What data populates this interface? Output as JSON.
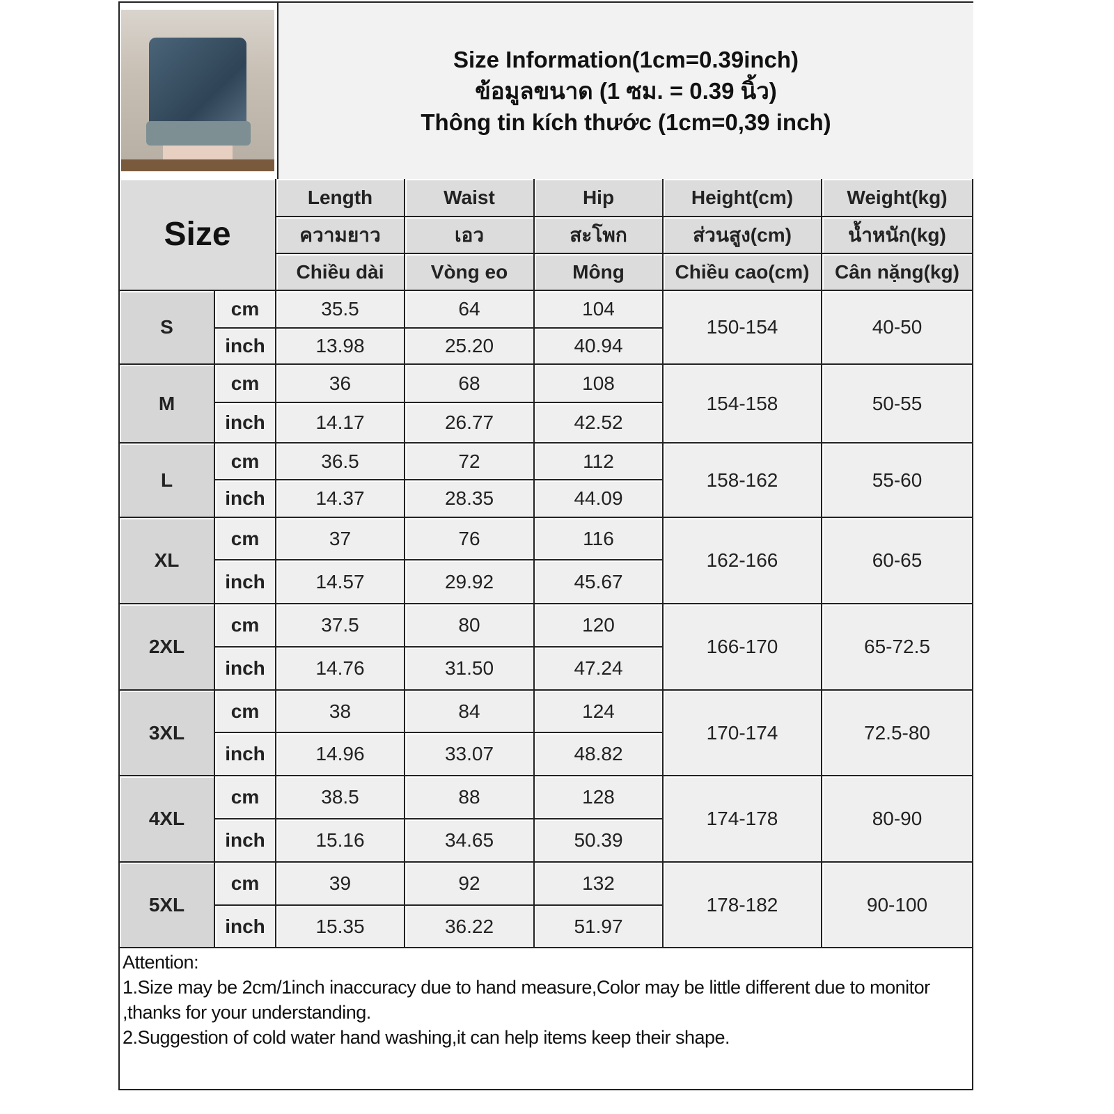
{
  "title": {
    "line1": "Size Information(1cm=0.39inch)",
    "line2": "ข้อมูลขนาด (1 ซม. = 0.39 นิ้ว)",
    "line3": "Thông tin kích thước (1cm=0,39 inch)"
  },
  "header": {
    "size_label": "Size",
    "columns": [
      {
        "en": "Length",
        "th": "ความยาว",
        "vi": "Chiều dài"
      },
      {
        "en": "Waist",
        "th": "เอว",
        "vi": "Vòng eo"
      },
      {
        "en": "Hip",
        "th": "สะโพก",
        "vi": "Mông"
      },
      {
        "en": "Height(cm)",
        "th": "ส่วนสูง(cm)",
        "vi": "Chiều cao(cm)"
      },
      {
        "en": "Weight(kg)",
        "th": "น้ำหนัก(kg)",
        "vi": "Cân nặng(kg)"
      }
    ]
  },
  "units": {
    "cm": "cm",
    "inch": "inch"
  },
  "rows": [
    {
      "size": "S",
      "cm": [
        "35.5",
        "64",
        "104"
      ],
      "inch": [
        "13.98",
        "25.20",
        "40.94"
      ],
      "height": "150-154",
      "weight": "40-50"
    },
    {
      "size": "M",
      "cm": [
        "36",
        "68",
        "108"
      ],
      "inch": [
        "14.17",
        "26.77",
        "42.52"
      ],
      "height": "154-158",
      "weight": "50-55"
    },
    {
      "size": "L",
      "cm": [
        "36.5",
        "72",
        "112"
      ],
      "inch": [
        "14.37",
        "28.35",
        "44.09"
      ],
      "height": "158-162",
      "weight": "55-60"
    },
    {
      "size": "XL",
      "cm": [
        "37",
        "76",
        "116"
      ],
      "inch": [
        "14.57",
        "29.92",
        "45.67"
      ],
      "height": "162-166",
      "weight": "60-65"
    },
    {
      "size": "2XL",
      "cm": [
        "37.5",
        "80",
        "120"
      ],
      "inch": [
        "14.76",
        "31.50",
        "47.24"
      ],
      "height": "166-170",
      "weight": "65-72.5"
    },
    {
      "size": "3XL",
      "cm": [
        "38",
        "84",
        "124"
      ],
      "inch": [
        "14.96",
        "33.07",
        "48.82"
      ],
      "height": "170-174",
      "weight": "72.5-80"
    },
    {
      "size": "4XL",
      "cm": [
        "38.5",
        "88",
        "128"
      ],
      "inch": [
        "15.16",
        "34.65",
        "50.39"
      ],
      "height": "174-178",
      "weight": "80-90"
    },
    {
      "size": "5XL",
      "cm": [
        "39",
        "92",
        "132"
      ],
      "inch": [
        "15.35",
        "36.22",
        "51.97"
      ],
      "height": "178-182",
      "weight": "90-100"
    }
  ],
  "attention": {
    "heading": "Attention:",
    "note1": "1.Size may be 2cm/1inch inaccuracy due to hand measure,Color may be little different due to monitor ,thanks for your understanding.",
    "note2": "2.Suggestion of cold water hand washing,it can help items keep their shape."
  }
}
